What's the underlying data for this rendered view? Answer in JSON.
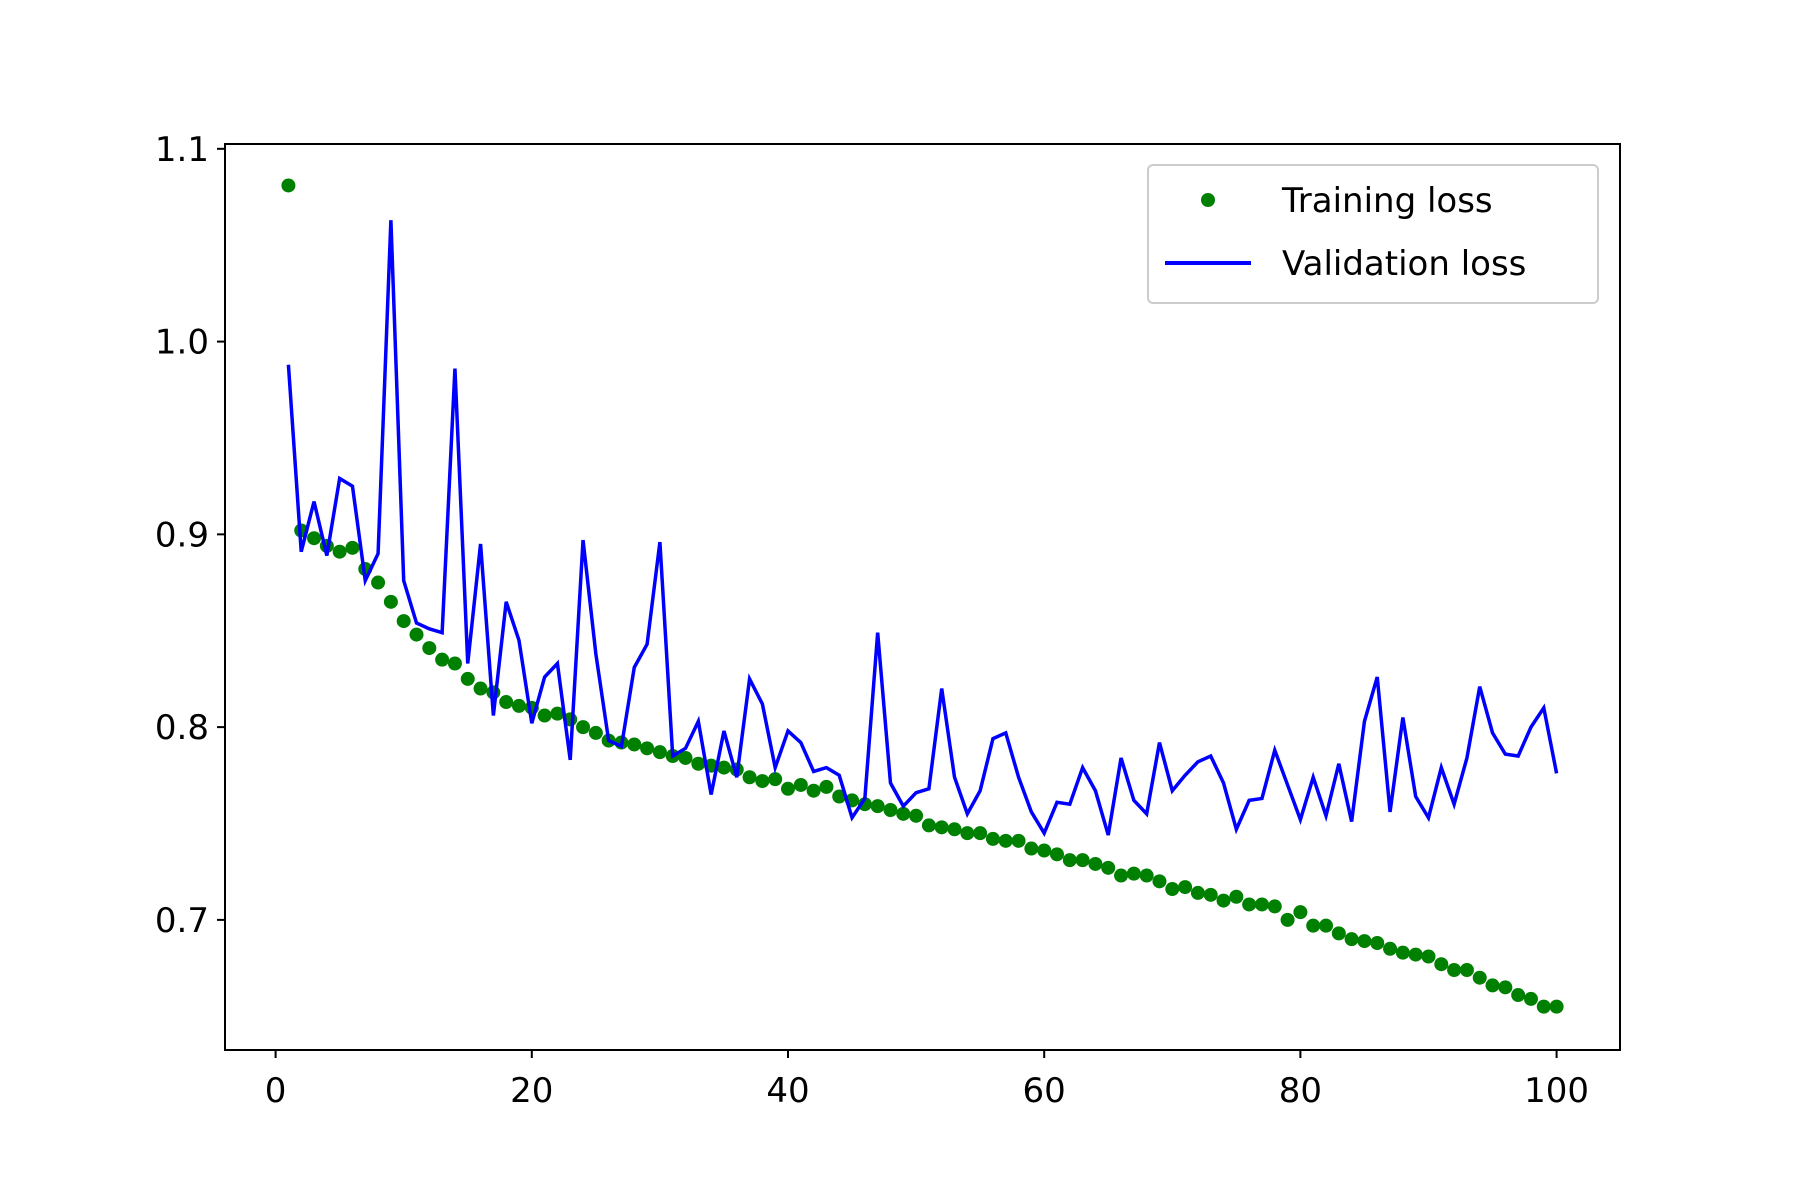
{
  "chart_data": {
    "type": "line",
    "title": "",
    "xlabel": "",
    "ylabel": "",
    "xlim": [
      -3.95,
      104.95
    ],
    "ylim": [
      0.6325,
      1.1025
    ],
    "xticks": [
      0,
      20,
      40,
      60,
      80,
      100
    ],
    "yticks": [
      0.7,
      0.8,
      0.9,
      1.0,
      1.1
    ],
    "xtick_labels": [
      "0",
      "20",
      "40",
      "60",
      "80",
      "100"
    ],
    "ytick_labels": [
      "0.7",
      "0.8",
      "0.9",
      "1.0",
      "1.1"
    ],
    "grid": false,
    "legend_position": "upper right",
    "series": [
      {
        "name": "Training loss",
        "style": "dots",
        "color": "#008000",
        "x": [
          1,
          2,
          3,
          4,
          5,
          6,
          7,
          8,
          9,
          10,
          11,
          12,
          13,
          14,
          15,
          16,
          17,
          18,
          19,
          20,
          21,
          22,
          23,
          24,
          25,
          26,
          27,
          28,
          29,
          30,
          31,
          32,
          33,
          34,
          35,
          36,
          37,
          38,
          39,
          40,
          41,
          42,
          43,
          44,
          45,
          46,
          47,
          48,
          49,
          50,
          51,
          52,
          53,
          54,
          55,
          56,
          57,
          58,
          59,
          60,
          61,
          62,
          63,
          64,
          65,
          66,
          67,
          68,
          69,
          70,
          71,
          72,
          73,
          74,
          75,
          76,
          77,
          78,
          79,
          80,
          81,
          82,
          83,
          84,
          85,
          86,
          87,
          88,
          89,
          90,
          91,
          92,
          93,
          94,
          95,
          96,
          97,
          98,
          99,
          100
        ],
        "y": [
          1.081,
          0.902,
          0.898,
          0.894,
          0.891,
          0.893,
          0.882,
          0.875,
          0.865,
          0.855,
          0.848,
          0.841,
          0.835,
          0.833,
          0.825,
          0.82,
          0.818,
          0.813,
          0.811,
          0.81,
          0.806,
          0.807,
          0.804,
          0.8,
          0.797,
          0.793,
          0.792,
          0.791,
          0.789,
          0.787,
          0.785,
          0.784,
          0.781,
          0.78,
          0.779,
          0.778,
          0.774,
          0.772,
          0.773,
          0.768,
          0.77,
          0.767,
          0.769,
          0.764,
          0.762,
          0.76,
          0.759,
          0.757,
          0.755,
          0.754,
          0.749,
          0.748,
          0.747,
          0.745,
          0.745,
          0.742,
          0.741,
          0.741,
          0.737,
          0.736,
          0.734,
          0.731,
          0.731,
          0.729,
          0.727,
          0.723,
          0.724,
          0.723,
          0.72,
          0.716,
          0.717,
          0.714,
          0.713,
          0.71,
          0.712,
          0.708,
          0.708,
          0.707,
          0.7,
          0.704,
          0.697,
          0.697,
          0.693,
          0.69,
          0.689,
          0.688,
          0.685,
          0.683,
          0.682,
          0.681,
          0.677,
          0.674,
          0.674,
          0.67,
          0.666,
          0.665,
          0.661,
          0.659,
          0.655,
          0.655
        ]
      },
      {
        "name": "Validation loss",
        "style": "line",
        "color": "#0000ff",
        "x": [
          1,
          2,
          3,
          4,
          5,
          6,
          7,
          8,
          9,
          10,
          11,
          12,
          13,
          14,
          15,
          16,
          17,
          18,
          19,
          20,
          21,
          22,
          23,
          24,
          25,
          26,
          27,
          28,
          29,
          30,
          31,
          32,
          33,
          34,
          35,
          36,
          37,
          38,
          39,
          40,
          41,
          42,
          43,
          44,
          45,
          46,
          47,
          48,
          49,
          50,
          51,
          52,
          53,
          54,
          55,
          56,
          57,
          58,
          59,
          60,
          61,
          62,
          63,
          64,
          65,
          66,
          67,
          68,
          69,
          70,
          71,
          72,
          73,
          74,
          75,
          76,
          77,
          78,
          79,
          80,
          81,
          82,
          83,
          84,
          85,
          86,
          87,
          88,
          89,
          90,
          91,
          92,
          93,
          94,
          95,
          96,
          97,
          98,
          99,
          100
        ],
        "y": [
          0.988,
          0.891,
          0.917,
          0.889,
          0.929,
          0.925,
          0.876,
          0.89,
          1.063,
          0.876,
          0.854,
          0.851,
          0.849,
          0.986,
          0.833,
          0.895,
          0.806,
          0.865,
          0.845,
          0.802,
          0.826,
          0.833,
          0.783,
          0.897,
          0.838,
          0.793,
          0.79,
          0.831,
          0.843,
          0.896,
          0.785,
          0.789,
          0.803,
          0.765,
          0.798,
          0.774,
          0.825,
          0.812,
          0.779,
          0.798,
          0.792,
          0.777,
          0.779,
          0.775,
          0.753,
          0.763,
          0.849,
          0.771,
          0.759,
          0.766,
          0.768,
          0.82,
          0.774,
          0.755,
          0.767,
          0.794,
          0.797,
          0.774,
          0.756,
          0.745,
          0.761,
          0.76,
          0.779,
          0.767,
          0.744,
          0.784,
          0.762,
          0.755,
          0.792,
          0.767,
          0.775,
          0.782,
          0.785,
          0.771,
          0.747,
          0.762,
          0.763,
          0.788,
          0.77,
          0.752,
          0.774,
          0.754,
          0.781,
          0.751,
          0.803,
          0.826,
          0.756,
          0.805,
          0.764,
          0.753,
          0.779,
          0.76,
          0.784,
          0.821,
          0.797,
          0.786,
          0.785,
          0.8,
          0.81,
          0.776
        ]
      }
    ]
  },
  "colors": {
    "axes": "#000000",
    "legend_border": "#cccccc",
    "background": "#ffffff"
  }
}
